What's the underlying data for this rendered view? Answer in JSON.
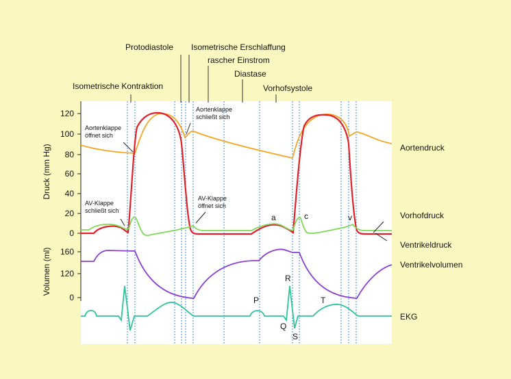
{
  "phases": {
    "protodiastole": "Protodiastole",
    "isometrische_erschlaffung": "Isometrische Erschlaffung",
    "rascher_einstrom": "rascher Einstrom",
    "diastase": "Diastase",
    "vorhofsystole": "Vorhofsystole",
    "isometrische_kontraktion": "Isometrische Kontraktion"
  },
  "axes": {
    "pressure_label": "Druck (mm Hg)",
    "volume_label": "Volumen (ml)",
    "pressure_ticks": [
      "0",
      "20",
      "40",
      "60",
      "80",
      "100",
      "120"
    ],
    "volume_ticks": [
      "0",
      "120",
      "160"
    ]
  },
  "annotations": {
    "aortenklappe_oeffnet_1": "Aortenklappe",
    "aortenklappe_oeffnet_2": "öffnet sich",
    "aortenklappe_schliesst_1": "Aortenklappe",
    "aortenklappe_schliesst_2": "schließt sich",
    "av_schliesst_1": "AV-Klappe",
    "av_schliesst_2": "schließt sich",
    "av_oeffnet_1": "AV-Klappe",
    "av_oeffnet_2": "öffnet sich",
    "wave_a": "a",
    "wave_c": "c",
    "wave_v": "v",
    "ecg_p": "P",
    "ecg_q": "Q",
    "ecg_r": "R",
    "ecg_s": "S",
    "ecg_t": "T"
  },
  "legend": {
    "aortendruck": "Aortendruck",
    "vorhofdruck": "Vorhofdruck",
    "ventrikeldruck": "Ventrikeldruck",
    "ventrikelvolumen": "Ventrikelvolumen",
    "ekg": "EKG"
  },
  "colors": {
    "background": "#fbf7c1",
    "panel": "#ffffff",
    "aortendruck": "#f5a623",
    "vorhofdruck": "#7ed957",
    "ventrikeldruck": "#e0202a",
    "ventrikelvolumen": "#8a3fd1",
    "ekg": "#2ec49a",
    "phase_lines": "#3a8fd6"
  }
}
